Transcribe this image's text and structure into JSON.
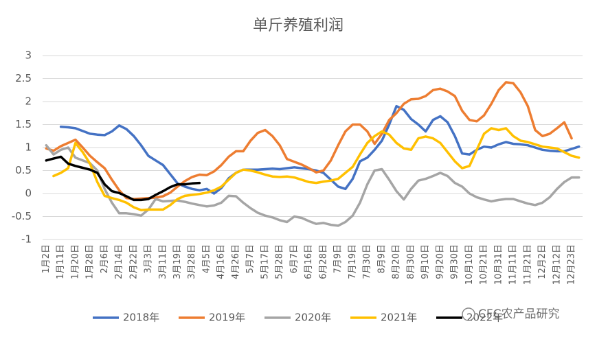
{
  "chart_data": {
    "type": "line",
    "title": "单斤养殖利润",
    "watermark": "CFC农产品研究",
    "categories": [
      "1月2日",
      null,
      "1月11日",
      null,
      "1月20日",
      null,
      "1月28日",
      null,
      "2月6日",
      null,
      "2月14日",
      null,
      "2月22日",
      null,
      "3月3日",
      null,
      "3月11日",
      null,
      "3月19日",
      null,
      "3月28日",
      null,
      "4月5日",
      null,
      "4月16日",
      null,
      "4月26日",
      null,
      "5月7日",
      null,
      "5月17日",
      null,
      "5月28日",
      null,
      "6月7日",
      null,
      "6月16日",
      null,
      "6月28日",
      null,
      "7月9日",
      null,
      "7月19日",
      null,
      "7月30日",
      null,
      "8月9日",
      null,
      "8月20日",
      null,
      "8月30日",
      null,
      "9月10日",
      null,
      "9月20日",
      null,
      "9月30日",
      null,
      "10月10日",
      null,
      "10月21日",
      null,
      "10月31日",
      null,
      "11月11日",
      null,
      "11月21日",
      null,
      "12月2日",
      null,
      "12月12日",
      null,
      "12月23日",
      null
    ],
    "series": [
      {
        "name": "2018年",
        "color": "#4472c4",
        "values": [
          null,
          null,
          1.45,
          1.44,
          1.42,
          1.36,
          1.3,
          1.28,
          1.27,
          1.35,
          1.48,
          1.4,
          1.25,
          1.05,
          0.82,
          0.72,
          0.62,
          0.42,
          0.22,
          0.15,
          0.1,
          0.07,
          0.1,
          0.0,
          0.12,
          0.33,
          0.45,
          0.52,
          0.52,
          0.52,
          0.53,
          0.54,
          0.53,
          0.55,
          0.57,
          0.55,
          0.53,
          0.5,
          0.45,
          0.3,
          0.15,
          0.1,
          0.32,
          0.7,
          0.78,
          0.95,
          1.15,
          1.5,
          1.9,
          1.82,
          1.62,
          1.5,
          1.35,
          1.6,
          1.68,
          1.55,
          1.25,
          0.87,
          0.85,
          0.95,
          1.02,
          1.0,
          1.07,
          1.12,
          1.08,
          1.07,
          1.05,
          1.0,
          0.95,
          0.93,
          0.92,
          0.92,
          0.97,
          1.02
        ]
      },
      {
        "name": "2019年",
        "color": "#ed7d31",
        "values": [
          0.98,
          0.93,
          1.03,
          1.1,
          1.17,
          1.0,
          0.82,
          0.68,
          0.55,
          0.3,
          0.07,
          -0.1,
          -0.12,
          -0.11,
          -0.1,
          -0.09,
          -0.06,
          0.02,
          0.15,
          0.27,
          0.36,
          0.41,
          0.4,
          0.48,
          0.62,
          0.8,
          0.92,
          0.92,
          1.15,
          1.32,
          1.38,
          1.25,
          1.05,
          0.75,
          0.69,
          0.63,
          0.55,
          0.46,
          0.5,
          0.72,
          1.05,
          1.35,
          1.5,
          1.5,
          1.35,
          1.08,
          1.3,
          1.6,
          1.75,
          1.95,
          2.05,
          2.06,
          2.12,
          2.25,
          2.28,
          2.22,
          2.12,
          1.8,
          1.6,
          1.57,
          1.7,
          1.95,
          2.25,
          2.42,
          2.4,
          2.2,
          1.9,
          1.38,
          1.25,
          1.3,
          1.42,
          1.55,
          1.2,
          null
        ]
      },
      {
        "name": "2020年",
        "color": "#a5a5a5",
        "values": [
          1.05,
          0.85,
          0.95,
          1.0,
          0.78,
          0.72,
          0.66,
          0.5,
          0.1,
          -0.2,
          -0.43,
          -0.43,
          -0.45,
          -0.48,
          -0.35,
          -0.12,
          -0.17,
          -0.16,
          -0.15,
          -0.18,
          -0.22,
          -0.25,
          -0.28,
          -0.26,
          -0.2,
          -0.05,
          -0.06,
          -0.2,
          -0.32,
          -0.42,
          -0.48,
          -0.52,
          -0.58,
          -0.62,
          -0.5,
          -0.53,
          -0.6,
          -0.66,
          -0.64,
          -0.68,
          -0.7,
          -0.62,
          -0.48,
          -0.2,
          0.2,
          0.5,
          0.53,
          0.3,
          0.05,
          -0.13,
          0.1,
          0.28,
          0.32,
          0.38,
          0.45,
          0.38,
          0.23,
          0.15,
          0.0,
          -0.08,
          -0.13,
          -0.17,
          -0.14,
          -0.12,
          -0.12,
          -0.17,
          -0.22,
          -0.25,
          -0.2,
          -0.08,
          0.1,
          0.25,
          0.35,
          0.35
        ]
      },
      {
        "name": "2021年",
        "color": "#ffc000",
        "values": [
          null,
          0.38,
          0.45,
          0.55,
          1.1,
          0.9,
          0.65,
          0.25,
          -0.05,
          -0.1,
          -0.14,
          -0.2,
          -0.3,
          -0.36,
          -0.35,
          -0.35,
          -0.35,
          -0.25,
          -0.12,
          -0.05,
          -0.03,
          -0.01,
          0.02,
          0.07,
          0.15,
          0.3,
          0.45,
          0.52,
          0.5,
          0.46,
          0.41,
          0.37,
          0.36,
          0.37,
          0.35,
          0.3,
          0.25,
          0.23,
          0.26,
          0.28,
          0.32,
          0.45,
          0.58,
          0.85,
          1.1,
          1.25,
          1.35,
          1.28,
          1.1,
          0.98,
          0.95,
          1.2,
          1.24,
          1.2,
          1.1,
          0.9,
          0.7,
          0.55,
          0.6,
          0.95,
          1.3,
          1.42,
          1.38,
          1.42,
          1.25,
          1.15,
          1.12,
          1.07,
          1.02,
          1.0,
          0.98,
          0.9,
          0.82,
          0.78
        ]
      },
      {
        "name": "2022年",
        "color": "#000000",
        "values": [
          0.72,
          0.76,
          0.8,
          0.65,
          0.6,
          0.56,
          0.52,
          0.45,
          0.2,
          0.05,
          0.01,
          -0.06,
          -0.14,
          -0.14,
          -0.12,
          -0.03,
          0.05,
          0.14,
          0.2,
          0.2,
          0.22,
          0.23,
          null,
          null,
          null,
          null,
          null,
          null,
          null,
          null,
          null,
          null,
          null,
          null,
          null,
          null,
          null,
          null,
          null,
          null,
          null,
          null,
          null,
          null,
          null,
          null,
          null,
          null,
          null,
          null,
          null,
          null,
          null,
          null,
          null,
          null,
          null,
          null,
          null,
          null,
          null,
          null,
          null,
          null,
          null,
          null,
          null,
          null,
          null,
          null,
          null,
          null,
          null,
          null
        ]
      }
    ],
    "ylim": [
      -1,
      3
    ],
    "yticks": [
      -1,
      -0.5,
      0,
      0.5,
      1,
      1.5,
      2,
      2.5,
      3
    ],
    "grid": true,
    "legend": "bottom"
  }
}
